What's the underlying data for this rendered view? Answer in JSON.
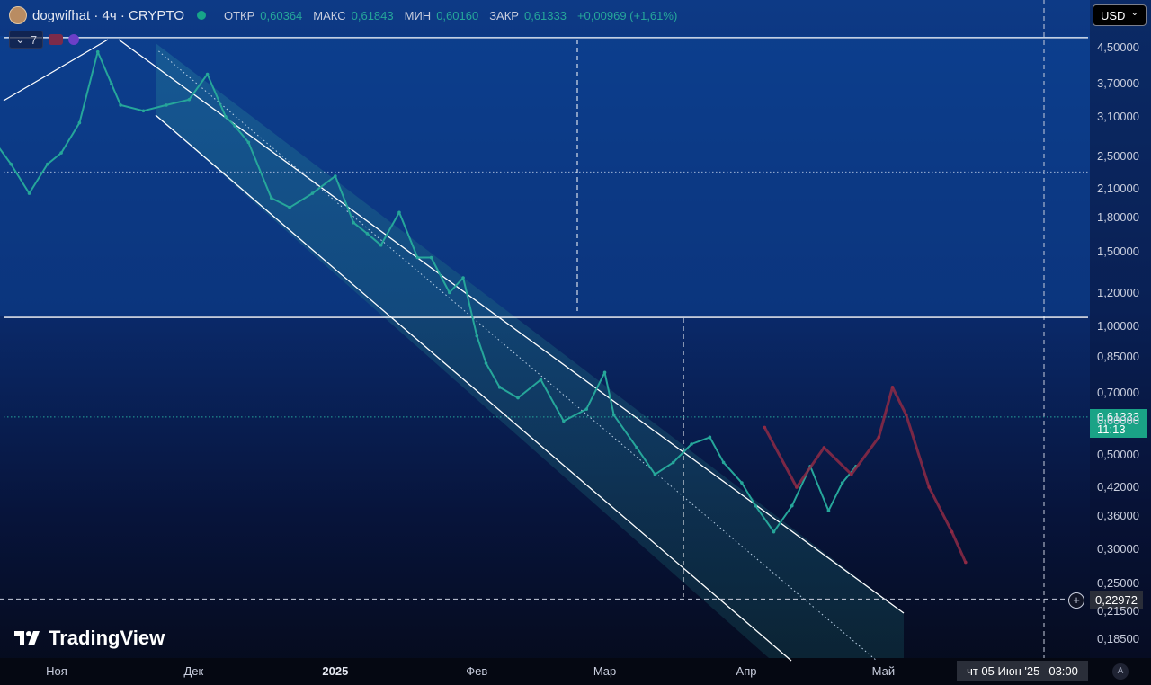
{
  "header": {
    "symbol": "dogwifhat · 4ч · CRYPTO",
    "open_label": "ОТКР",
    "open_value": "0,60364",
    "high_label": "МАКС",
    "high_value": "0,61843",
    "low_label": "МИН",
    "low_value": "0,60160",
    "close_label": "ЗАКР",
    "close_value": "0,61333",
    "change": "+0,00969 (+1,61%)"
  },
  "indicators": {
    "count": "7"
  },
  "currency": "USD",
  "current_price": {
    "value": "0,61333",
    "countdown": "11:13"
  },
  "crosshair": {
    "price": "0,22972",
    "time_label": "чт 05 Июн '25",
    "time_value": "03:00"
  },
  "brand": "TradingView",
  "auto_label": "A",
  "colors": {
    "up": "#26a69a",
    "projection": "#8e2a45",
    "channel_line": "#ffffff",
    "bg_top": "#0d3a86",
    "bg_bottom": "#050a1a",
    "price_tag": "#1aa386"
  },
  "chart_data": {
    "type": "line",
    "yscale": "log",
    "ylim": [
      0.16,
      5.0
    ],
    "y_ticks": [
      "4,50000",
      "3,70000",
      "3,10000",
      "2,50000",
      "2,10000",
      "1,80000",
      "1,50000",
      "1,20000",
      "1,00000",
      "0,85000",
      "0,70000",
      "0,60000",
      "0,50000",
      "0,42000",
      "0,36000",
      "0,30000",
      "0,25000",
      "0,21500",
      "0,18500"
    ],
    "y_tick_values": [
      4.5,
      3.7,
      3.1,
      2.5,
      2.1,
      1.8,
      1.5,
      1.2,
      1.0,
      0.85,
      0.7,
      0.6,
      0.5,
      0.42,
      0.36,
      0.3,
      0.25,
      0.215,
      0.185
    ],
    "x_ticks": [
      {
        "label": "Ноя",
        "date": "2024-11-01"
      },
      {
        "label": "Дек",
        "date": "2024-12-01"
      },
      {
        "label": "2025",
        "date": "2025-01-01",
        "bold": true
      },
      {
        "label": "Фев",
        "date": "2025-02-01"
      },
      {
        "label": "Мар",
        "date": "2025-03-01"
      },
      {
        "label": "Апр",
        "date": "2025-04-01"
      },
      {
        "label": "Май",
        "date": "2025-05-01"
      }
    ],
    "series": [
      {
        "kind": "price",
        "dates": [
          "2024-10-02",
          "2024-10-06",
          "2024-10-10",
          "2024-10-14",
          "2024-10-18",
          "2024-10-22",
          "2024-10-26",
          "2024-10-30",
          "2024-11-02",
          "2024-11-06",
          "2024-11-10",
          "2024-11-13",
          "2024-11-15",
          "2024-11-20",
          "2024-11-25",
          "2024-11-30",
          "2024-12-04",
          "2024-12-08",
          "2024-12-10",
          "2024-12-13",
          "2024-12-18",
          "2024-12-22",
          "2024-12-27",
          "2025-01-01",
          "2025-01-05",
          "2025-01-08",
          "2025-01-11",
          "2025-01-15",
          "2025-01-19",
          "2025-01-22",
          "2025-01-26",
          "2025-01-29",
          "2025-02-01",
          "2025-02-03",
          "2025-02-06",
          "2025-02-10",
          "2025-02-15",
          "2025-02-20",
          "2025-02-25",
          "2025-03-01",
          "2025-03-03",
          "2025-03-08",
          "2025-03-12",
          "2025-03-16",
          "2025-03-20",
          "2025-03-24",
          "2025-03-27",
          "2025-03-31",
          "2025-04-03",
          "2025-04-07",
          "2025-04-11",
          "2025-04-15",
          "2025-04-19",
          "2025-04-22",
          "2025-04-25"
        ],
        "values": [
          2.75,
          2.55,
          2.7,
          2.55,
          2.75,
          2.4,
          2.05,
          2.4,
          2.55,
          3.0,
          4.4,
          3.7,
          3.3,
          3.2,
          3.3,
          3.4,
          3.9,
          3.1,
          2.95,
          2.7,
          2.0,
          1.9,
          2.05,
          2.25,
          1.75,
          1.65,
          1.55,
          1.85,
          1.45,
          1.45,
          1.2,
          1.3,
          0.95,
          0.82,
          0.72,
          0.68,
          0.75,
          0.6,
          0.64,
          0.78,
          0.62,
          0.52,
          0.45,
          0.48,
          0.53,
          0.55,
          0.48,
          0.43,
          0.38,
          0.33,
          0.38,
          0.47,
          0.37,
          0.43,
          0.47
        ]
      },
      {
        "kind": "projection",
        "dates": [
          "2025-04-05",
          "2025-04-12",
          "2025-04-18",
          "2025-04-24",
          "2025-04-30",
          "2025-05-03",
          "2025-05-06",
          "2025-05-11",
          "2025-05-16",
          "2025-05-19"
        ],
        "values": [
          0.58,
          0.42,
          0.52,
          0.45,
          0.55,
          0.72,
          0.62,
          0.42,
          0.33,
          0.28
        ]
      }
    ],
    "drawings": {
      "horizontal_lines": [
        4.75,
        1.05
      ],
      "dotted_lines": [
        2.3,
        0.6133
      ],
      "dashed_lines": [
        0.2297
      ]
    }
  }
}
